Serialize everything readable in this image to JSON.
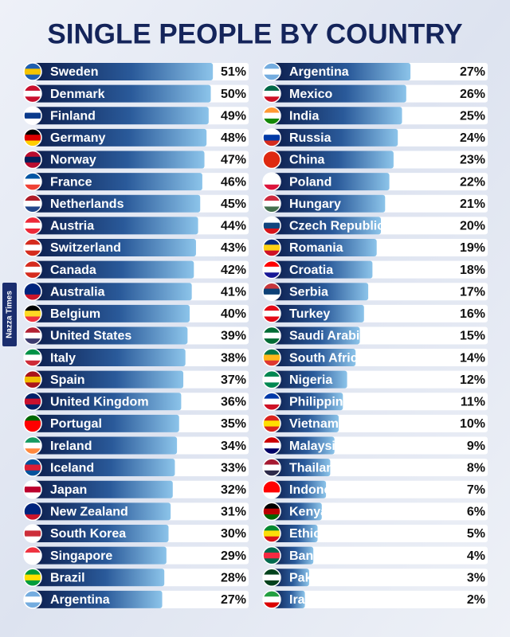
{
  "watermark": "Nazza Times",
  "chart_data": [
    {
      "type": "bar",
      "title": "SINGLE PEOPLE BY COUNTRY",
      "categories": [
        "Sweden",
        "Denmark",
        "Finland",
        "Germany",
        "Norway",
        "France",
        "Netherlands",
        "Austria",
        "Switzerland",
        "Canada",
        "Australia",
        "Belgium",
        "United States",
        "Italy",
        "Spain",
        "United Kingdom",
        "Portugal",
        "Ireland",
        "Iceland",
        "Japan",
        "New Zealand",
        "South Korea",
        "Singapore",
        "Brazil",
        "Argentina"
      ],
      "values": [
        51,
        50,
        49,
        48,
        47,
        46,
        45,
        44,
        43,
        42,
        41,
        40,
        39,
        38,
        37,
        36,
        35,
        34,
        33,
        32,
        31,
        30,
        29,
        28,
        27
      ],
      "value_labels": [
        "51%",
        "50%",
        "49%",
        "48%",
        "47%",
        "46%",
        "45%",
        "44%",
        "43%",
        "42%",
        "41%",
        "40%",
        "39%",
        "38%",
        "37%",
        "36%",
        "35%",
        "34%",
        "33%",
        "32%",
        "31%",
        "30%",
        "29%",
        "28%",
        "27%"
      ]
    },
    {
      "type": "bar",
      "categories": [
        "Argentina",
        "Mexico",
        "India",
        "Russia",
        "China",
        "Poland",
        "Hungary",
        "Czech Republic",
        "Romania",
        "Croatia",
        "Serbia",
        "Turkey",
        "Saudi Arabia",
        "South Africa",
        "Nigeria",
        "Philippines",
        "Vietnam",
        "Malaysia",
        "Thailand",
        "Indonesia",
        "Kenya",
        "Ethiopia",
        "Bangladesh",
        "Pakistan",
        "Iran"
      ],
      "values": [
        27,
        26,
        25,
        24,
        23,
        22,
        21,
        20,
        19,
        18,
        17,
        16,
        15,
        14,
        12,
        11,
        10,
        9,
        8,
        7,
        6,
        5,
        4,
        3,
        2
      ],
      "value_labels": [
        "27%",
        "26%",
        "25%",
        "24%",
        "23%",
        "22%",
        "21%",
        "20%",
        "19%",
        "18%",
        "17%",
        "16%",
        "15%",
        "14%",
        "12%",
        "11%",
        "10%",
        "9%",
        "8%",
        "7%",
        "6%",
        "5%",
        "4%",
        "3%",
        "2%"
      ]
    }
  ]
}
